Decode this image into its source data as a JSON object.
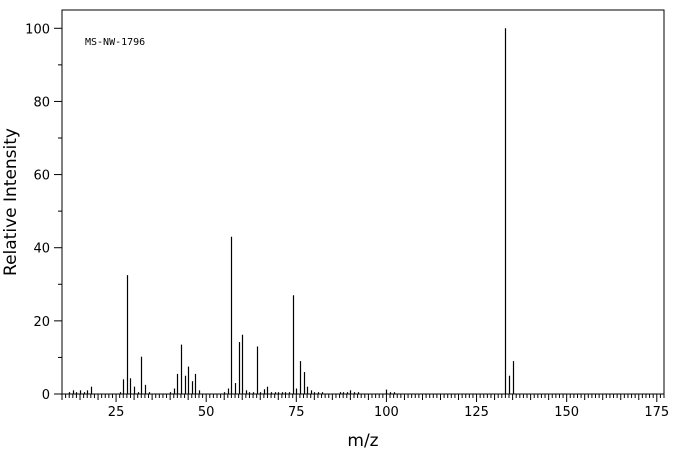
{
  "chart_data": {
    "type": "bar",
    "title": "",
    "annotation": "MS-NW-1796",
    "xlabel": "m/z",
    "ylabel": "Relative Intensity",
    "xlim": [
      10,
      177
    ],
    "ylim": [
      0,
      105
    ],
    "x_ticks": [
      25,
      50,
      75,
      100,
      125,
      150,
      175
    ],
    "y_ticks": [
      0,
      20,
      40,
      60,
      80,
      100
    ],
    "grid": false,
    "series": [
      {
        "x": [
          12,
          13,
          14,
          15,
          16,
          17,
          18,
          26,
          27,
          28,
          29,
          30,
          31,
          32,
          33,
          34,
          40,
          41,
          42,
          43,
          44,
          45,
          46,
          47,
          48,
          55,
          56,
          57,
          58,
          59,
          60,
          61,
          62,
          63,
          64,
          65,
          66,
          67,
          68,
          69,
          70,
          71,
          72,
          73,
          74,
          75,
          76,
          77,
          78,
          79,
          80,
          81,
          82,
          87,
          88,
          89,
          90,
          91,
          92,
          100,
          101,
          102,
          133,
          134,
          135
        ],
        "y": [
          0.5,
          1,
          0.5,
          1,
          0.5,
          1,
          2,
          0.5,
          4,
          32.5,
          4.3,
          2,
          0.5,
          10.2,
          2.5,
          0.5,
          0.5,
          1.5,
          5.5,
          13.5,
          5,
          7.5,
          3.5,
          5.5,
          1,
          0.5,
          1.5,
          43,
          3,
          14.2,
          16.2,
          1,
          0.5,
          0.5,
          13,
          0.5,
          1.3,
          2,
          0.5,
          0.5,
          0.5,
          0.5,
          0.5,
          0.5,
          27,
          1.5,
          9,
          6,
          2,
          1,
          0.5,
          0.5,
          0.5,
          0.5,
          0.5,
          0.5,
          1,
          0.5,
          0.5,
          1.2,
          0.5,
          0.5,
          100,
          5,
          9
        ]
      }
    ]
  }
}
